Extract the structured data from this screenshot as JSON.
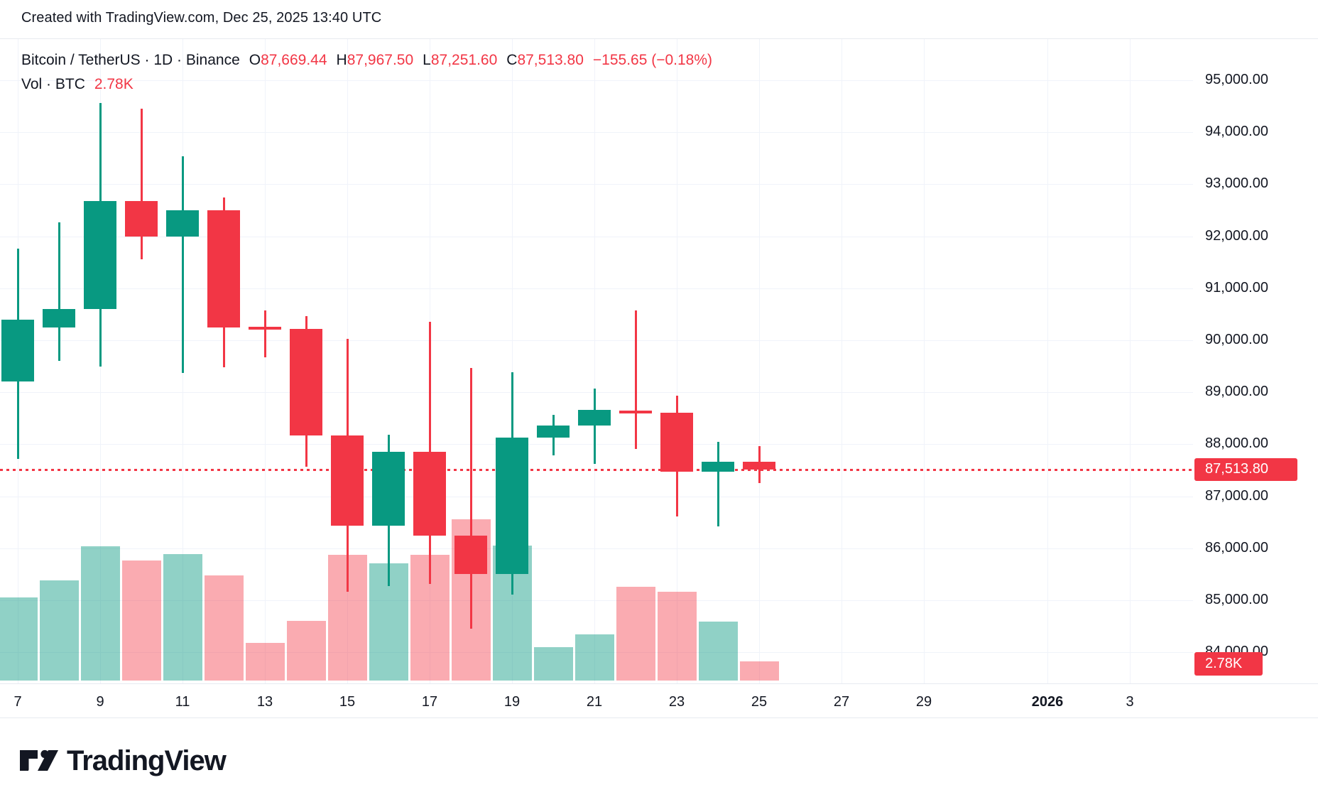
{
  "attribution": "Created with TradingView.com, Dec 25, 2025 13:40 UTC",
  "legend": {
    "title": "Bitcoin / TetherUS · 1D · Binance",
    "ohlc": [
      {
        "label": "O",
        "value": "87,669.44"
      },
      {
        "label": "H",
        "value": "87,967.50"
      },
      {
        "label": "L",
        "value": "87,251.60"
      },
      {
        "label": "C",
        "value": "87,513.80"
      }
    ],
    "change": "−155.65 (−0.18%)",
    "volume_label": "Vol · BTC",
    "volume_value": "2.78K"
  },
  "price_tag": "87,513.80",
  "volume_tag": "2.78K",
  "logo": {
    "text": "TradingView"
  },
  "colors": {
    "up": "#089981",
    "down": "#F23645",
    "up_volume": "rgba(8,153,129,0.45)",
    "down_volume": "rgba(242,54,69,0.42)",
    "grid": "#F0F3FA",
    "text": "#131722",
    "accent": "#F23645",
    "tag_text": "#FFFFFF"
  },
  "y_axis": {
    "labels": [
      "95,000.00",
      "94,000.00",
      "93,000.00",
      "92,000.00",
      "91,000.00",
      "90,000.00",
      "89,000.00",
      "88,000.00",
      "87,000.00",
      "86,000.00",
      "85,000.00",
      "84,000.00"
    ],
    "values": [
      95000,
      94000,
      93000,
      92000,
      91000,
      90000,
      89000,
      88000,
      87000,
      86000,
      85000,
      84000
    ]
  },
  "x_axis": {
    "labels": [
      {
        "text": "7",
        "slot": 0,
        "bold": false
      },
      {
        "text": "9",
        "slot": 2,
        "bold": false
      },
      {
        "text": "11",
        "slot": 4,
        "bold": false
      },
      {
        "text": "13",
        "slot": 6,
        "bold": false
      },
      {
        "text": "15",
        "slot": 8,
        "bold": false
      },
      {
        "text": "17",
        "slot": 10,
        "bold": false
      },
      {
        "text": "19",
        "slot": 12,
        "bold": false
      },
      {
        "text": "21",
        "slot": 14,
        "bold": false
      },
      {
        "text": "23",
        "slot": 16,
        "bold": false
      },
      {
        "text": "25",
        "slot": 18,
        "bold": false
      },
      {
        "text": "27",
        "slot": 20,
        "bold": false
      },
      {
        "text": "29",
        "slot": 22,
        "bold": false
      },
      {
        "text": "2026",
        "slot": 25,
        "bold": true
      },
      {
        "text": "3",
        "slot": 27,
        "bold": false
      }
    ]
  },
  "chart_data": {
    "type": "candlestick",
    "title": "Bitcoin / TetherUS",
    "interval": "1D",
    "exchange": "Binance",
    "volume_unit": "K BTC",
    "last_price": 87513.8,
    "last_change": -155.65,
    "last_change_pct": -0.18,
    "last_volume_k": 2.78,
    "price_line": 87513.8,
    "y_range_visible": [
      83400,
      95800
    ],
    "grid": true,
    "dates": [
      "Dec 7",
      "Dec 8",
      "Dec 9",
      "Dec 10",
      "Dec 11",
      "Dec 12",
      "Dec 13",
      "Dec 14",
      "Dec 15",
      "Dec 16",
      "Dec 17",
      "Dec 18",
      "Dec 19",
      "Dec 20",
      "Dec 21",
      "Dec 22",
      "Dec 23",
      "Dec 24",
      "Dec 25"
    ],
    "year": 2025,
    "open": [
      89210,
      90250,
      90600,
      92680,
      91990,
      92500,
      90260,
      90220,
      88170,
      86430,
      87860,
      86240,
      85500,
      88130,
      88360,
      88650,
      88610,
      87470,
      87669.44
    ],
    "high": [
      91760,
      92270,
      94560,
      94450,
      93540,
      92750,
      90570,
      90460,
      90030,
      88180,
      90360,
      89470,
      89390,
      88570,
      89070,
      90570,
      88930,
      88050,
      87967.5
    ],
    "low": [
      87720,
      89600,
      89500,
      91560,
      89370,
      89480,
      89670,
      87570,
      85160,
      85270,
      85310,
      84450,
      85110,
      87790,
      87620,
      87910,
      86610,
      86420,
      87251.6
    ],
    "close": [
      90400,
      90600,
      92680,
      91990,
      92500,
      90250,
      90230,
      88170,
      86430,
      87860,
      86240,
      85500,
      88130,
      88360,
      88660,
      88620,
      87470,
      87660,
      87513.8
    ],
    "volume_k_btc": [
      12.0,
      14.5,
      19.5,
      17.4,
      18.3,
      15.2,
      5.5,
      8.7,
      18.2,
      17.0,
      18.2,
      23.4,
      19.6,
      4.8,
      6.7,
      13.6,
      12.9,
      8.5,
      2.78
    ]
  }
}
